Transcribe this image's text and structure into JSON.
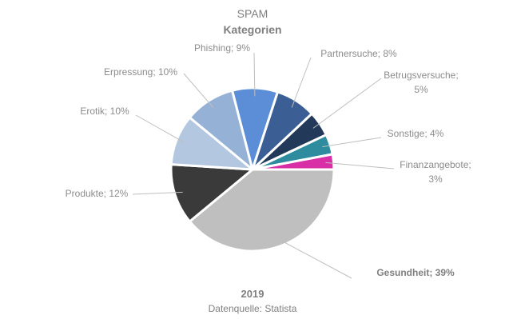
{
  "chart_data": {
    "type": "pie",
    "title": "SPAM",
    "subtitle": "Kategorien",
    "footer_year": "2019",
    "footer_source": "Datenquelle: Statista",
    "slices": [
      {
        "label": "Gesundheit; 39%",
        "name": "Gesundheit",
        "value": 39,
        "color": "#bfbfbf",
        "bold": true
      },
      {
        "label": "Produkte; 12%",
        "name": "Produkte",
        "value": 12,
        "color": "#3a3a3a"
      },
      {
        "label": "Erotik; 10%",
        "name": "Erotik",
        "value": 10,
        "color": "#b4c7e0"
      },
      {
        "label": "Erpressung; 10%",
        "name": "Erpressung",
        "value": 10,
        "color": "#95b1d5"
      },
      {
        "label": "Phishing; 9%",
        "name": "Phishing",
        "value": 9,
        "color": "#5b8ed6"
      },
      {
        "label": "Partnersuche; 8%",
        "name": "Partnersuche",
        "value": 8,
        "color": "#3b5f95"
      },
      {
        "label": [
          "Betrugsversuche;",
          "5%"
        ],
        "name": "Betrugsversuche",
        "value": 5,
        "color": "#23395a"
      },
      {
        "label": "Sonstige; 4%",
        "name": "Sonstige",
        "value": 4,
        "color": "#2f8c9e"
      },
      {
        "label": [
          "Finanzangebote;",
          "3%"
        ],
        "name": "Finanzangebote",
        "value": 3,
        "color": "#d82fa6"
      }
    ]
  }
}
